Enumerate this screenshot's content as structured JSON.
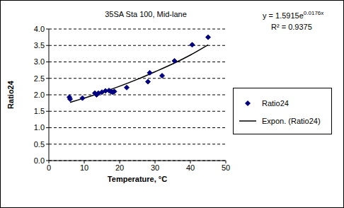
{
  "chart_data": {
    "type": "scatter",
    "title": "35SA Sta 100, Mid-lane",
    "x_label": "Temperature, °C",
    "y_label": "Ratio24",
    "annotations": [
      {
        "text": "y = 1.5915e",
        "superscript": "0.0176x"
      },
      {
        "text": "R² = 0.9375"
      }
    ],
    "series": [
      {
        "name": "Ratio24",
        "type": "scatter",
        "color": "#000080",
        "marker": "diamond",
        "x": [
          5.8,
          6,
          9.5,
          13,
          13.5,
          14,
          15,
          16,
          17,
          17.5,
          18,
          18.5,
          22,
          28,
          28.5,
          32,
          35.5,
          40.5,
          45
        ],
        "values": [
          1.93,
          1.87,
          1.9,
          2.05,
          2.0,
          2.05,
          2.08,
          2.12,
          2.13,
          2.1,
          2.08,
          2.1,
          2.22,
          2.4,
          2.67,
          2.58,
          3.03,
          3.52,
          3.75
        ]
      },
      {
        "name": "Expon. (Ratio24)",
        "type": "line",
        "color": "#000000",
        "marker": "none",
        "x": [
          6,
          10,
          15,
          20,
          25,
          30,
          35,
          40,
          45
        ],
        "values": [
          1.77,
          1.9,
          2.07,
          2.26,
          2.47,
          2.7,
          2.94,
          3.21,
          3.52
        ]
      }
    ],
    "xlim": [
      0,
      50
    ],
    "xticks": [
      0,
      10,
      20,
      30,
      40,
      50
    ],
    "ylim": [
      0,
      4
    ],
    "yticks": [
      {
        "value": 0,
        "label": "0.0"
      },
      {
        "value": 0.5,
        "label": "0.5"
      },
      {
        "value": 1,
        "label": "1.0"
      },
      {
        "value": 1.5,
        "label": "1.5"
      },
      {
        "value": 2,
        "label": "2.0"
      },
      {
        "value": 2.5,
        "label": "2.5"
      },
      {
        "value": 3,
        "label": "3.0"
      },
      {
        "value": 3.5,
        "label": "3.5"
      },
      {
        "value": 4,
        "label": "4.0"
      }
    ],
    "grid": true,
    "legend": "right"
  }
}
